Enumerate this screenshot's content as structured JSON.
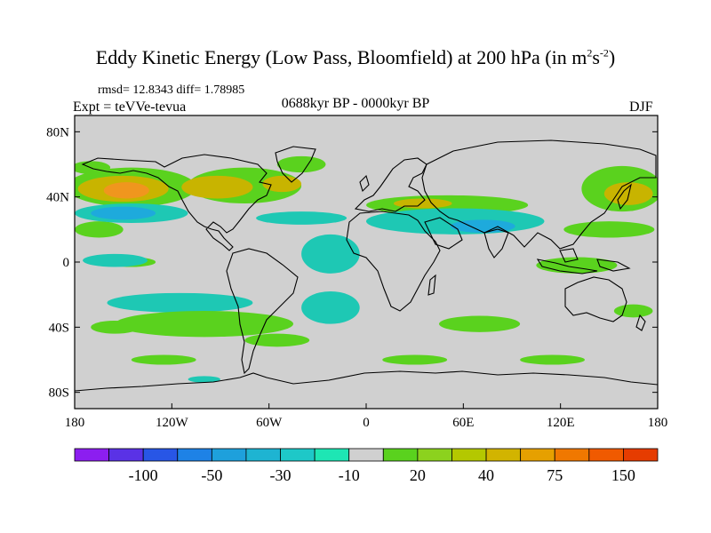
{
  "title": {
    "main": "Eddy Kinetic Energy (Low Pass, Bloomfield) at 200 hPa (in m",
    "sup1": "2",
    "mid": "s",
    "sup2": "-2",
    "end": ")"
  },
  "stats": "rmsd= 12.8343 diff= 1.78985",
  "expt": "Expt = teVVe-tevua",
  "period": "0688kyr BP - 0000kyr BP",
  "season": "DJF",
  "map": {
    "projection": "cylindrical-equidistant",
    "lon_range": [
      -180,
      180
    ],
    "lat_range": [
      -90,
      90
    ],
    "background_color": "#d0d0d0",
    "y_ticks": [
      {
        "lat": 80,
        "label": "80N"
      },
      {
        "lat": 40,
        "label": "40N"
      },
      {
        "lat": 0,
        "label": "0"
      },
      {
        "lat": -40,
        "label": "40S"
      },
      {
        "lat": -80,
        "label": "80S"
      }
    ],
    "x_ticks": [
      {
        "lon": -180,
        "label": "180"
      },
      {
        "lon": -120,
        "label": "120W"
      },
      {
        "lon": -60,
        "label": "60W"
      },
      {
        "lon": 0,
        "label": "0"
      },
      {
        "lon": 60,
        "label": "60E"
      },
      {
        "lon": 120,
        "label": "120E"
      },
      {
        "lon": 180,
        "label": "180"
      }
    ],
    "anomaly_regions": [
      {
        "level": 20,
        "lon": -145,
        "lat": 46,
        "rlon": 40,
        "rlat": 12,
        "color": "#5ad21e"
      },
      {
        "level": 40,
        "lon": -150,
        "lat": 45,
        "rlon": 28,
        "rlat": 8,
        "color": "#c8b400"
      },
      {
        "level": 75,
        "lon": -148,
        "lat": 44,
        "rlon": 14,
        "rlat": 5,
        "color": "#f0961e"
      },
      {
        "level": 20,
        "lon": -75,
        "lat": 47,
        "rlon": 35,
        "rlat": 11,
        "color": "#5ad21e"
      },
      {
        "level": 40,
        "lon": -92,
        "lat": 46,
        "rlon": 22,
        "rlat": 7,
        "color": "#c8b400"
      },
      {
        "level": 40,
        "lon": -52,
        "lat": 48,
        "rlon": 12,
        "rlat": 5,
        "color": "#c8b400"
      },
      {
        "level": 20,
        "lon": -40,
        "lat": 60,
        "rlon": 15,
        "rlat": 5,
        "color": "#5ad21e"
      },
      {
        "level": 20,
        "lon": -170,
        "lat": 58,
        "rlon": 12,
        "rlat": 4,
        "color": "#5ad21e"
      },
      {
        "level": 20,
        "lon": 50,
        "lat": 35,
        "rlon": 50,
        "rlat": 6,
        "color": "#5ad21e"
      },
      {
        "level": 40,
        "lon": 35,
        "lat": 36,
        "rlon": 18,
        "rlat": 3,
        "color": "#c8b400"
      },
      {
        "level": 20,
        "lon": 158,
        "lat": 45,
        "rlon": 25,
        "rlat": 14,
        "color": "#5ad21e"
      },
      {
        "level": 40,
        "lon": 162,
        "lat": 42,
        "rlon": 15,
        "rlat": 7,
        "color": "#c8b400"
      },
      {
        "level": 20,
        "lon": 150,
        "lat": 20,
        "rlon": 28,
        "rlat": 5,
        "color": "#5ad21e"
      },
      {
        "level": 20,
        "lon": -165,
        "lat": 20,
        "rlon": 15,
        "rlat": 5,
        "color": "#5ad21e"
      },
      {
        "level": 20,
        "lon": -145,
        "lat": 0,
        "rlon": 15,
        "rlat": 3,
        "color": "#5ad21e"
      },
      {
        "level": -10,
        "lon": -145,
        "lat": 30,
        "rlon": 35,
        "rlat": 6,
        "color": "#1ec8b4"
      },
      {
        "level": -30,
        "lon": -150,
        "lat": 30,
        "rlon": 20,
        "rlat": 4,
        "color": "#1eaadc"
      },
      {
        "level": -10,
        "lon": -40,
        "lat": 27,
        "rlon": 28,
        "rlat": 4,
        "color": "#1ec8b4"
      },
      {
        "level": -10,
        "lon": 55,
        "lat": 25,
        "rlon": 55,
        "rlat": 8,
        "color": "#1ec8b4"
      },
      {
        "level": -30,
        "lon": 72,
        "lat": 22,
        "rlon": 20,
        "rlat": 4,
        "color": "#1eaadc"
      },
      {
        "level": -10,
        "lon": -155,
        "lat": 1,
        "rlon": 20,
        "rlat": 4,
        "color": "#1ec8b4"
      },
      {
        "level": -10,
        "lon": -22,
        "lat": 5,
        "rlon": 18,
        "rlat": 12,
        "color": "#1ec8b4"
      },
      {
        "level": -10,
        "lon": -22,
        "lat": -28,
        "rlon": 18,
        "rlat": 10,
        "color": "#1ec8b4"
      },
      {
        "level": -10,
        "lon": -115,
        "lat": -25,
        "rlon": 45,
        "rlat": 6,
        "color": "#1ec8b4"
      },
      {
        "level": 20,
        "lon": -100,
        "lat": -38,
        "rlon": 55,
        "rlat": 8,
        "color": "#5ad21e"
      },
      {
        "level": 20,
        "lon": -55,
        "lat": -48,
        "rlon": 20,
        "rlat": 4,
        "color": "#5ad21e"
      },
      {
        "level": 20,
        "lon": -155,
        "lat": -40,
        "rlon": 15,
        "rlat": 4,
        "color": "#5ad21e"
      },
      {
        "level": 20,
        "lon": 70,
        "lat": -38,
        "rlon": 25,
        "rlat": 5,
        "color": "#5ad21e"
      },
      {
        "level": 20,
        "lon": 30,
        "lat": -60,
        "rlon": 20,
        "rlat": 3,
        "color": "#5ad21e"
      },
      {
        "level": 20,
        "lon": 115,
        "lat": -60,
        "rlon": 20,
        "rlat": 3,
        "color": "#5ad21e"
      },
      {
        "level": 20,
        "lon": 130,
        "lat": -2,
        "rlon": 25,
        "rlat": 5,
        "color": "#5ad21e"
      },
      {
        "level": 20,
        "lon": 165,
        "lat": -30,
        "rlon": 12,
        "rlat": 4,
        "color": "#5ad21e"
      },
      {
        "level": 20,
        "lon": -125,
        "lat": -60,
        "rlon": 20,
        "rlat": 3,
        "color": "#5ad21e"
      },
      {
        "level": -10,
        "lon": -100,
        "lat": -72,
        "rlon": 10,
        "rlat": 2,
        "color": "#1ec8b4"
      }
    ]
  },
  "colorbar": {
    "colors": [
      "#8c1ef0",
      "#5a32e6",
      "#2856e6",
      "#1e82e6",
      "#1ea0dc",
      "#1eb4d2",
      "#1ec8c8",
      "#1ee6b4",
      "#d0d0d0",
      "#5ad21e",
      "#8cd21e",
      "#b4c800",
      "#d2b400",
      "#e6a000",
      "#f07800",
      "#f05a00",
      "#e63c00"
    ],
    "labels": [
      {
        "after_box": 2,
        "text": "-100"
      },
      {
        "after_box": 4,
        "text": "-50"
      },
      {
        "after_box": 6,
        "text": "-30"
      },
      {
        "after_box": 8,
        "text": "-10"
      },
      {
        "after_box": 10,
        "text": "20"
      },
      {
        "after_box": 12,
        "text": "40"
      },
      {
        "after_box": 14,
        "text": "75"
      },
      {
        "after_box": 16,
        "text": "150"
      }
    ]
  }
}
